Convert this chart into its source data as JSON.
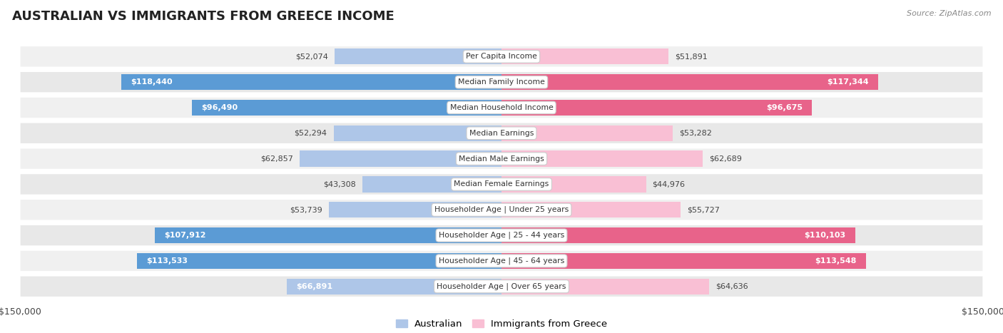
{
  "title": "AUSTRALIAN VS IMMIGRANTS FROM GREECE INCOME",
  "source": "Source: ZipAtlas.com",
  "categories": [
    "Per Capita Income",
    "Median Family Income",
    "Median Household Income",
    "Median Earnings",
    "Median Male Earnings",
    "Median Female Earnings",
    "Householder Age | Under 25 years",
    "Householder Age | 25 - 44 years",
    "Householder Age | 45 - 64 years",
    "Householder Age | Over 65 years"
  ],
  "australian_values": [
    52074,
    118440,
    96490,
    52294,
    62857,
    43308,
    53739,
    107912,
    113533,
    66891
  ],
  "greece_values": [
    51891,
    117344,
    96675,
    53282,
    62689,
    44976,
    55727,
    110103,
    113548,
    64636
  ],
  "australian_labels": [
    "$52,074",
    "$118,440",
    "$96,490",
    "$52,294",
    "$62,857",
    "$43,308",
    "$53,739",
    "$107,912",
    "$113,533",
    "$66,891"
  ],
  "greece_labels": [
    "$51,891",
    "$117,344",
    "$96,675",
    "$53,282",
    "$62,689",
    "$44,976",
    "$55,727",
    "$110,103",
    "$113,548",
    "$64,636"
  ],
  "max_value": 150000,
  "australian_color_light": "#aec6e8",
  "australian_color_dark": "#5b9bd5",
  "greece_color_light": "#f9bfd4",
  "greece_color_dark": "#e8638a",
  "aus_dark_threshold": 80000,
  "gre_dark_threshold": 80000,
  "row_bg_odd": "#f0f0f0",
  "row_bg_even": "#e8e8e8",
  "bar_height": 0.62,
  "inside_threshold": 65000,
  "title_fontsize": 13,
  "source_fontsize": 8,
  "label_fontsize": 8,
  "cat_fontsize": 7.8,
  "axis_fontsize": 9
}
